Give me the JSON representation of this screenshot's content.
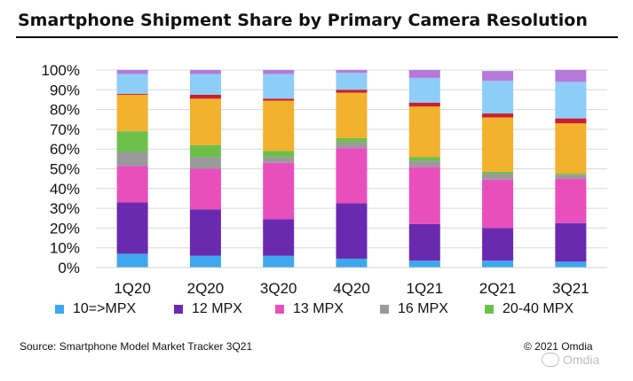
{
  "title": "Smartphone Shipment Share by Primary Camera Resolution",
  "source": "Source: Smartphone Model Market Tracker 3Q21",
  "copyright": "© 2021 Omdia",
  "watermark": "Omdia",
  "legend": [
    {
      "label": "10=>MPX",
      "color": "#3fa7ec"
    },
    {
      "label": "12 MPX",
      "color": "#6a2ab0"
    },
    {
      "label": "13 MPX",
      "color": "#e84fbd"
    },
    {
      "label": "16 MPX",
      "color": "#9a9a9a"
    },
    {
      "label": "20-40 MPX",
      "color": "#6cc04a"
    }
  ],
  "chart_data": {
    "type": "bar",
    "stacked": true,
    "categories": [
      "1Q20",
      "2Q20",
      "3Q20",
      "4Q20",
      "1Q21",
      "2Q21",
      "3Q21"
    ],
    "ylim": [
      0,
      100
    ],
    "yticks": [
      "0%",
      "10%",
      "20%",
      "30%",
      "40%",
      "50%",
      "60%",
      "70%",
      "80%",
      "90%",
      "100%"
    ],
    "grid": true,
    "legend_position": "bottom",
    "series": [
      {
        "name": "10=>MPX",
        "color": "#3fa7ec",
        "values": [
          7,
          6,
          6,
          4.5,
          3.5,
          3.5,
          3
        ]
      },
      {
        "name": "12 MPX",
        "color": "#6a2ab0",
        "values": [
          26,
          23.5,
          18.5,
          28,
          18.5,
          16.5,
          19.5
        ]
      },
      {
        "name": "13 MPX",
        "color": "#e84fbd",
        "values": [
          18.5,
          20.5,
          28.5,
          28,
          29,
          24.5,
          22.5
        ]
      },
      {
        "name": "16 MPX",
        "color": "#9a9a9a",
        "values": [
          7,
          6,
          3,
          3,
          3,
          3,
          2
        ]
      },
      {
        "name": "20-40 MPX",
        "color": "#6cc04a",
        "values": [
          10.5,
          6,
          3,
          2,
          2,
          1,
          0.5
        ]
      },
      {
        "name": "",
        "color": "#f2b12e",
        "values": [
          18.5,
          23.5,
          25.5,
          23,
          25.5,
          27.5,
          25.5
        ]
      },
      {
        "name": "",
        "color": "#c8202f",
        "values": [
          0.5,
          2,
          1,
          1.5,
          2,
          2,
          2.5
        ]
      },
      {
        "name": "",
        "color": "#8ecdf7",
        "values": [
          10,
          10.5,
          12.5,
          8.5,
          12.5,
          16.5,
          18.5
        ]
      },
      {
        "name": "",
        "color": "#b57ad9",
        "values": [
          2,
          2,
          2,
          1.5,
          4,
          5,
          6
        ]
      }
    ]
  }
}
